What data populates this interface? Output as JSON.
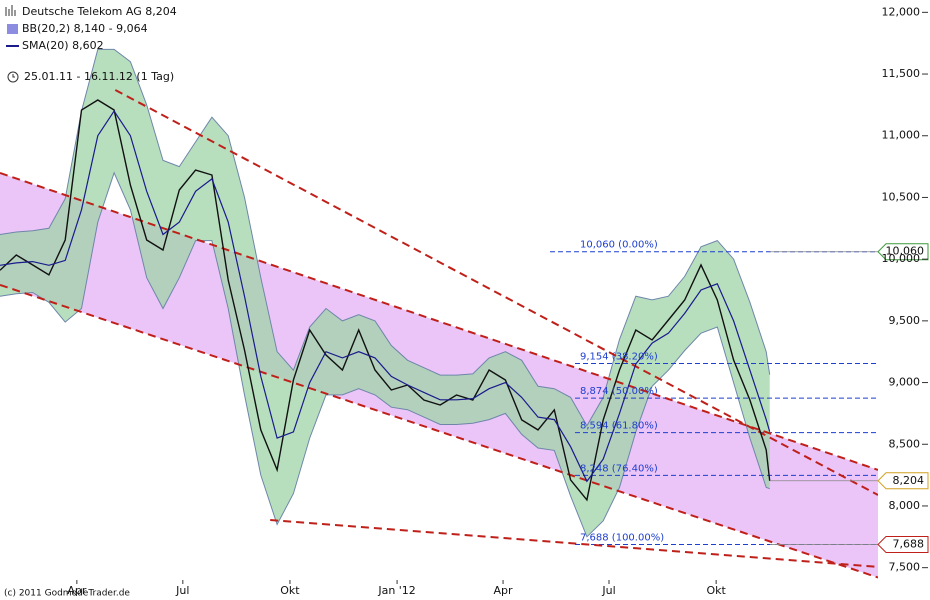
{
  "chart_data": {
    "type": "line",
    "subtitle": "25.01.11 - 16.11.12 (1 Tag)",
    "source": "(c) 2011 GodmodeTrader.de",
    "xlim": [
      0,
      754
    ],
    "xticks": [
      {
        "value": 66,
        "label": "Apr"
      },
      {
        "value": 157,
        "label": "Jul"
      },
      {
        "value": 249,
        "label": "Okt"
      },
      {
        "value": 341,
        "label": "Jan '12"
      },
      {
        "value": 432,
        "label": "Apr"
      },
      {
        "value": 523,
        "label": "Jul"
      },
      {
        "value": 615,
        "label": "Okt"
      }
    ],
    "ylim": [
      7400,
      12100
    ],
    "yticks": [
      {
        "value": 7500,
        "label": "7,500"
      },
      {
        "value": 8000,
        "label": "8,000"
      },
      {
        "value": 8500,
        "label": "8,500"
      },
      {
        "value": 9000,
        "label": "9,000"
      },
      {
        "value": 9500,
        "label": "9,500"
      },
      {
        "value": 10000,
        "label": "10,000"
      },
      {
        "value": 10500,
        "label": "10,500"
      },
      {
        "value": 11000,
        "label": "11,000"
      },
      {
        "value": 11500,
        "label": "11,500"
      },
      {
        "value": 12000,
        "label": "12,000"
      }
    ],
    "grid": false,
    "x": [
      0,
      14,
      28,
      42,
      56,
      70,
      84,
      98,
      112,
      126,
      140,
      154,
      168,
      182,
      196,
      210,
      224,
      238,
      252,
      266,
      280,
      294,
      308,
      322,
      336,
      350,
      364,
      378,
      392,
      406,
      420,
      434,
      448,
      462,
      476,
      490,
      504,
      518,
      532,
      546,
      560,
      574,
      588,
      602,
      616,
      630,
      644,
      658,
      661
    ],
    "series": [
      {
        "name": "Deutsche Telekom AG 8,204",
        "color": "#111111",
        "values": [
          9910,
          10034,
          9953,
          9872,
          10155,
          11209,
          11290,
          11209,
          10600,
          10155,
          10074,
          10560,
          10722,
          10682,
          9831,
          9264,
          8616,
          8292,
          9021,
          9426,
          9223,
          9102,
          9426,
          9102,
          8940,
          8980,
          8859,
          8818,
          8899,
          8859,
          9102,
          9021,
          8697,
          8616,
          8778,
          8211,
          8049,
          8697,
          9102,
          9426,
          9345,
          9507,
          9669,
          9953,
          9669,
          9183,
          8859,
          8454,
          8204
        ]
      },
      {
        "name": "SMA(20) 8,602",
        "color": "#1a1a8c",
        "values": [
          9950,
          9970,
          9980,
          9950,
          9990,
          10400,
          11000,
          11200,
          11000,
          10550,
          10200,
          10300,
          10550,
          10650,
          10300,
          9700,
          9050,
          8550,
          8600,
          9000,
          9250,
          9200,
          9250,
          9200,
          9050,
          8980,
          8920,
          8860,
          8860,
          8870,
          8950,
          9000,
          8880,
          8720,
          8700,
          8480,
          8200,
          8380,
          8750,
          9150,
          9320,
          9400,
          9560,
          9750,
          9800,
          9500,
          9100,
          8700,
          8602
        ]
      }
    ],
    "bands": {
      "name": "BB(20,2) 8,140 - 9,064",
      "color": "#8c8ce0",
      "fill": "#9fd4a8",
      "line": "#6e86aa",
      "upper": [
        10200,
        10220,
        10230,
        10250,
        10490,
        11200,
        11700,
        11700,
        11600,
        11250,
        10800,
        10750,
        10950,
        11150,
        11000,
        10500,
        9850,
        9250,
        9100,
        9450,
        9600,
        9500,
        9550,
        9500,
        9300,
        9180,
        9120,
        9060,
        9060,
        9070,
        9200,
        9250,
        9180,
        8970,
        8950,
        8880,
        8650,
        8880,
        9350,
        9700,
        9670,
        9700,
        9860,
        10100,
        10150,
        10000,
        9650,
        9250,
        9064
      ],
      "lower": [
        9700,
        9720,
        9730,
        9650,
        9490,
        9600,
        10300,
        10700,
        10400,
        9850,
        9600,
        9850,
        10150,
        10150,
        9600,
        8900,
        8250,
        7850,
        8100,
        8550,
        8900,
        8900,
        8950,
        8900,
        8800,
        8780,
        8720,
        8660,
        8660,
        8670,
        8700,
        8750,
        8580,
        8470,
        8450,
        8080,
        7750,
        7880,
        8150,
        8600,
        8970,
        9100,
        9260,
        9400,
        9450,
        9000,
        8550,
        8150,
        8140
      ]
    },
    "channel_fill": "#ebc4f8",
    "trendline_color": "#c0201a",
    "trendlines": [
      {
        "x": [
          0,
          754
        ],
        "y": [
          10698,
          8292
        ]
      },
      {
        "x": [
          0,
          754
        ],
        "y": [
          9791,
          7420
        ]
      },
      {
        "x": [
          99,
          754
        ],
        "y": [
          11371,
          8089
        ]
      },
      {
        "x": [
          232,
          754
        ],
        "y": [
          7886,
          7506
        ]
      }
    ],
    "fib_color": "#1f3fcf",
    "fib_levels": [
      {
        "value": 10060,
        "label": "10,060 (0.00%)"
      },
      {
        "value": 9154,
        "label": "9,154 (38.20%)"
      },
      {
        "value": 8874,
        "label": "8,874 (50.00%)"
      },
      {
        "value": 8594,
        "label": "8,594 (61.80%)"
      },
      {
        "value": 8248,
        "label": "8,248 (76.40%)"
      },
      {
        "value": 7688,
        "label": "7,688 (100.00%)"
      }
    ],
    "price_tags": [
      {
        "value": 10060,
        "label": "10,060",
        "color": "#3a9a3a"
      },
      {
        "value": 8204,
        "label": "8,204",
        "color": "#d4a020"
      },
      {
        "value": 7688,
        "label": "7,688",
        "color": "#c0201a"
      }
    ]
  }
}
